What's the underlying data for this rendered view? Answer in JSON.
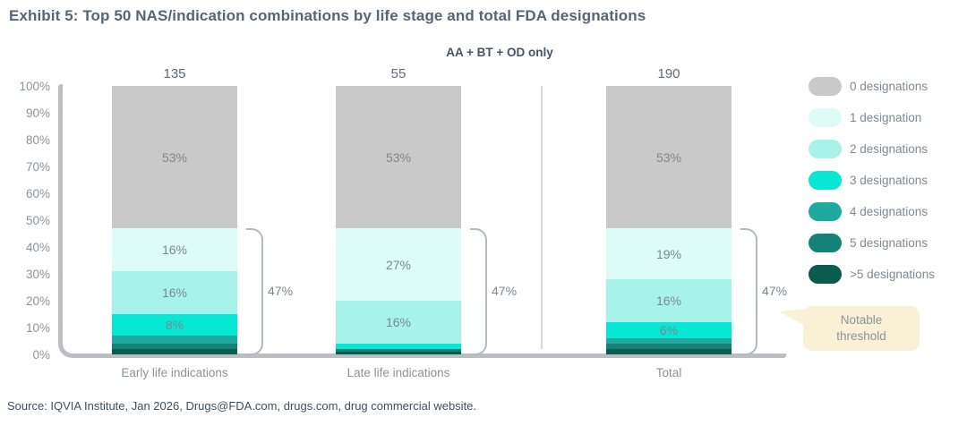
{
  "header": {
    "title": "Exhibit 5: Top 50 NAS/indication combinations by life stage and total FDA designations",
    "subtitle": "AA + BT + OD only"
  },
  "callout": {
    "text": "Notable threshold",
    "bg_color": "#faf0d6"
  },
  "source": "Source: IQVIA Institute, Jan 2026, Drugs@FDA.com, drugs.com, drug commercial website.",
  "chart_data": {
    "type": "bar",
    "stacked": true,
    "title": "Exhibit 5: Top 50 NAS/indication combinations by life stage and total FDA designations",
    "subtitle": "AA + BT + OD only",
    "ylabel": "",
    "xlabel": "",
    "ylim": [
      0,
      100
    ],
    "grid": false,
    "legend_position": "right",
    "yticks": [
      "100%",
      "90%",
      "80%",
      "70%",
      "60%",
      "50%",
      "40%",
      "30%",
      "20%",
      "10%",
      "0%"
    ],
    "legend": [
      {
        "label": "0 designations",
        "color": "#c9c9c9"
      },
      {
        "label": "1 designation",
        "color": "#ddfbf7"
      },
      {
        "label": "2 designations",
        "color": "#a7f3e9"
      },
      {
        "label": "3 designations",
        "color": "#06e8d4"
      },
      {
        "label": "4 designations",
        "color": "#20a99e"
      },
      {
        "label": "5 designations",
        "color": "#15827a"
      },
      {
        "label": ">5 designations",
        "color": "#0b5b4e"
      }
    ],
    "categories": [
      {
        "label": "Early life indications",
        "total": "135",
        "bracket_label": "47%",
        "segments_top_down": [
          {
            "series": "0 designations",
            "value": 53,
            "label": "53%"
          },
          {
            "series": "1 designation",
            "value": 16,
            "label": "16%"
          },
          {
            "series": "2 designations",
            "value": 16,
            "label": "16%"
          },
          {
            "series": "3 designations",
            "value": 8,
            "label": "8%"
          },
          {
            "series": "4 designations",
            "value": 3,
            "label": ""
          },
          {
            "series": "5 designations",
            "value": 2,
            "label": ""
          },
          {
            "series": ">5 designations",
            "value": 2,
            "label": ""
          }
        ]
      },
      {
        "label": "Late life indications",
        "total": "55",
        "bracket_label": "47%",
        "segments_top_down": [
          {
            "series": "0 designations",
            "value": 53,
            "label": "53%"
          },
          {
            "series": "1 designation",
            "value": 27,
            "label": "27%"
          },
          {
            "series": "2 designations",
            "value": 16,
            "label": "16%"
          },
          {
            "series": "3 designations",
            "value": 2,
            "label": ""
          },
          {
            "series": "5 designations",
            "value": 1,
            "label": ""
          },
          {
            "series": ">5 designations",
            "value": 1,
            "label": ""
          }
        ]
      },
      {
        "label": "Total",
        "total": "190",
        "bracket_label": "47%",
        "segments_top_down": [
          {
            "series": "0 designations",
            "value": 53,
            "label": "53%"
          },
          {
            "series": "1 designation",
            "value": 19,
            "label": "19%"
          },
          {
            "series": "2 designations",
            "value": 16,
            "label": "16%"
          },
          {
            "series": "3 designations",
            "value": 6,
            "label": "6%"
          },
          {
            "series": "4 designations",
            "value": 2,
            "label": ""
          },
          {
            "series": "5 designations",
            "value": 2,
            "label": ""
          },
          {
            "series": ">5 designations",
            "value": 2,
            "label": ""
          }
        ]
      }
    ]
  }
}
